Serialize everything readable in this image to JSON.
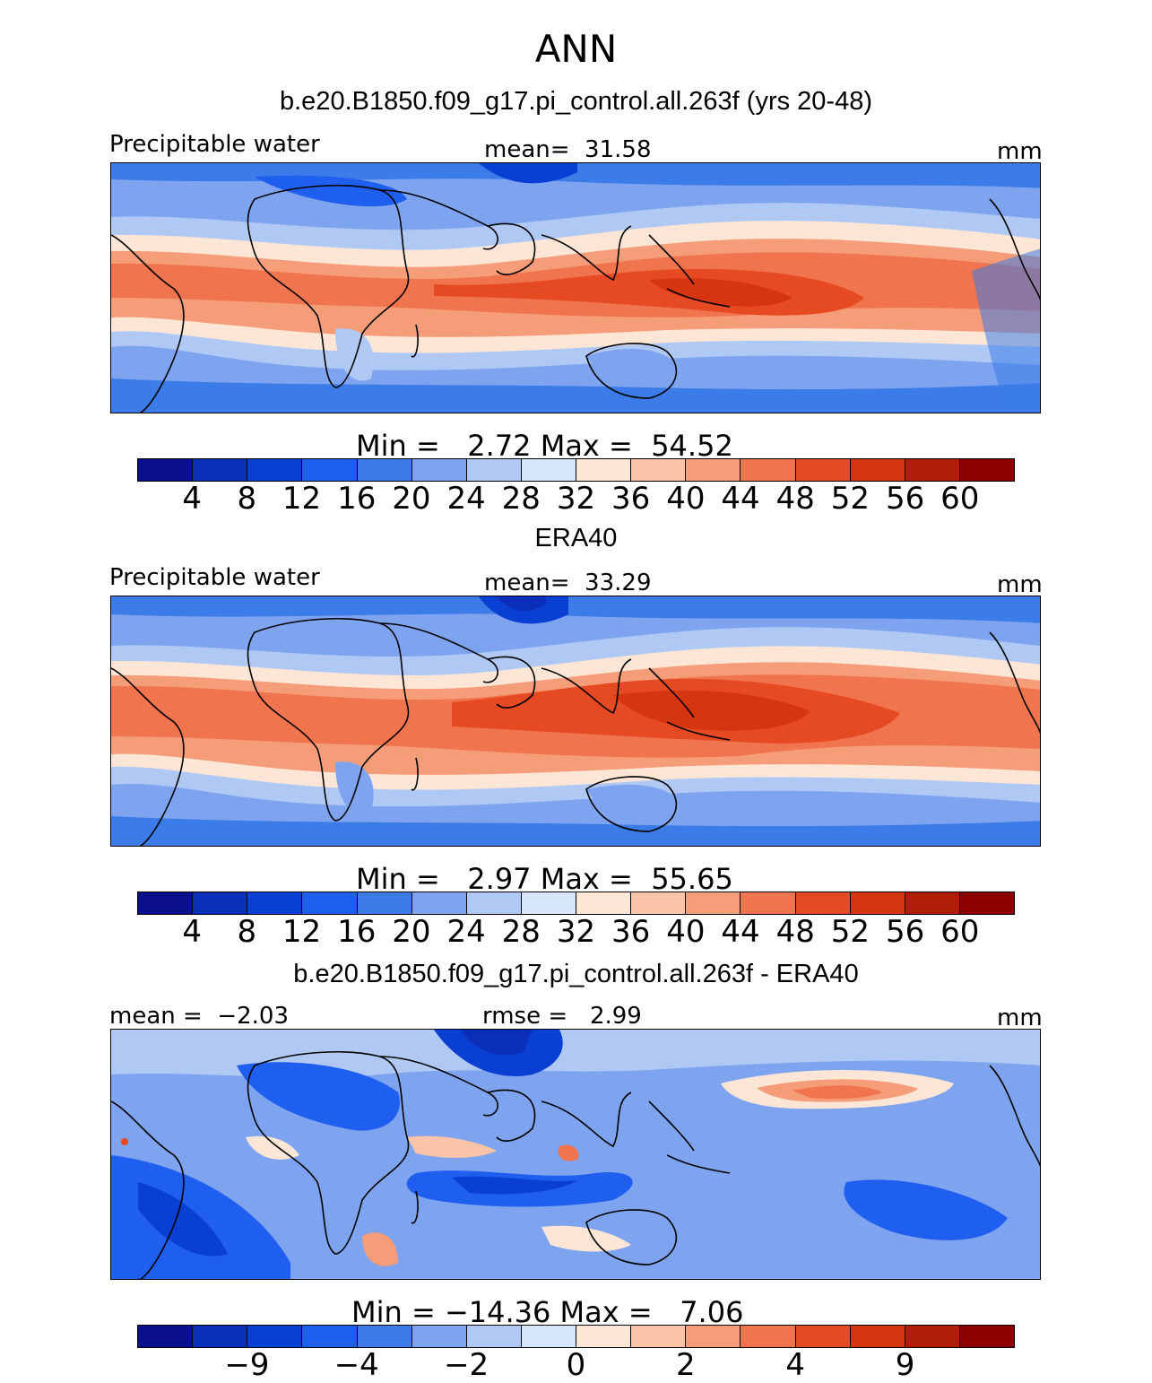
{
  "figure": {
    "title": "ANN"
  },
  "colors": {
    "absolute_scale": [
      "#0a0f8c",
      "#0b2fb9",
      "#0a3fd4",
      "#1f5fef",
      "#3b7ce8",
      "#7ea3ef",
      "#b0c9f4",
      "#d8e6fb",
      "#fde6d6",
      "#fbc3a7",
      "#f59c78",
      "#f0744d",
      "#e64a22",
      "#d5350f",
      "#b11e08",
      "#8c0000"
    ],
    "diff_scale": [
      "#0a0f8c",
      "#0b2fb9",
      "#0a3fd4",
      "#1f5fef",
      "#3b7ce8",
      "#7ea3ef",
      "#b0c9f4",
      "#d8e6fb",
      "#fde6d6",
      "#fbc3a7",
      "#f59c78",
      "#f0744d",
      "#e64a22",
      "#d5350f",
      "#b11e08",
      "#8c0000"
    ]
  },
  "panels": [
    {
      "case_title": "b.e20.B1850.f09_g17.pi_control.all.263f (yrs 20-48)",
      "left_label": "Precipitable water",
      "center_label": "mean=  31.58",
      "units": "mm",
      "minmax": "Min =   2.72 Max =  54.52",
      "ticks": [
        "4",
        "8",
        "12",
        "16",
        "20",
        "24",
        "28",
        "32",
        "36",
        "40",
        "44",
        "48",
        "52",
        "56",
        "60"
      ]
    },
    {
      "case_title": "ERA40",
      "left_label": "Precipitable water",
      "center_label": "mean=  33.29",
      "units": "mm",
      "minmax": "Min =   2.97 Max =  55.65",
      "ticks": [
        "4",
        "8",
        "12",
        "16",
        "20",
        "24",
        "28",
        "32",
        "36",
        "40",
        "44",
        "48",
        "52",
        "56",
        "60"
      ]
    },
    {
      "case_title": "b.e20.B1850.f09_g17.pi_control.all.263f - ERA40",
      "left_label": "mean =  −2.03",
      "center_label": "rmse =   2.99",
      "units": "mm",
      "minmax": "Min = −14.36 Max =   7.06",
      "ticks": [
        "−9",
        "−4",
        "−2",
        "0",
        "2",
        "4",
        "9"
      ]
    }
  ]
}
